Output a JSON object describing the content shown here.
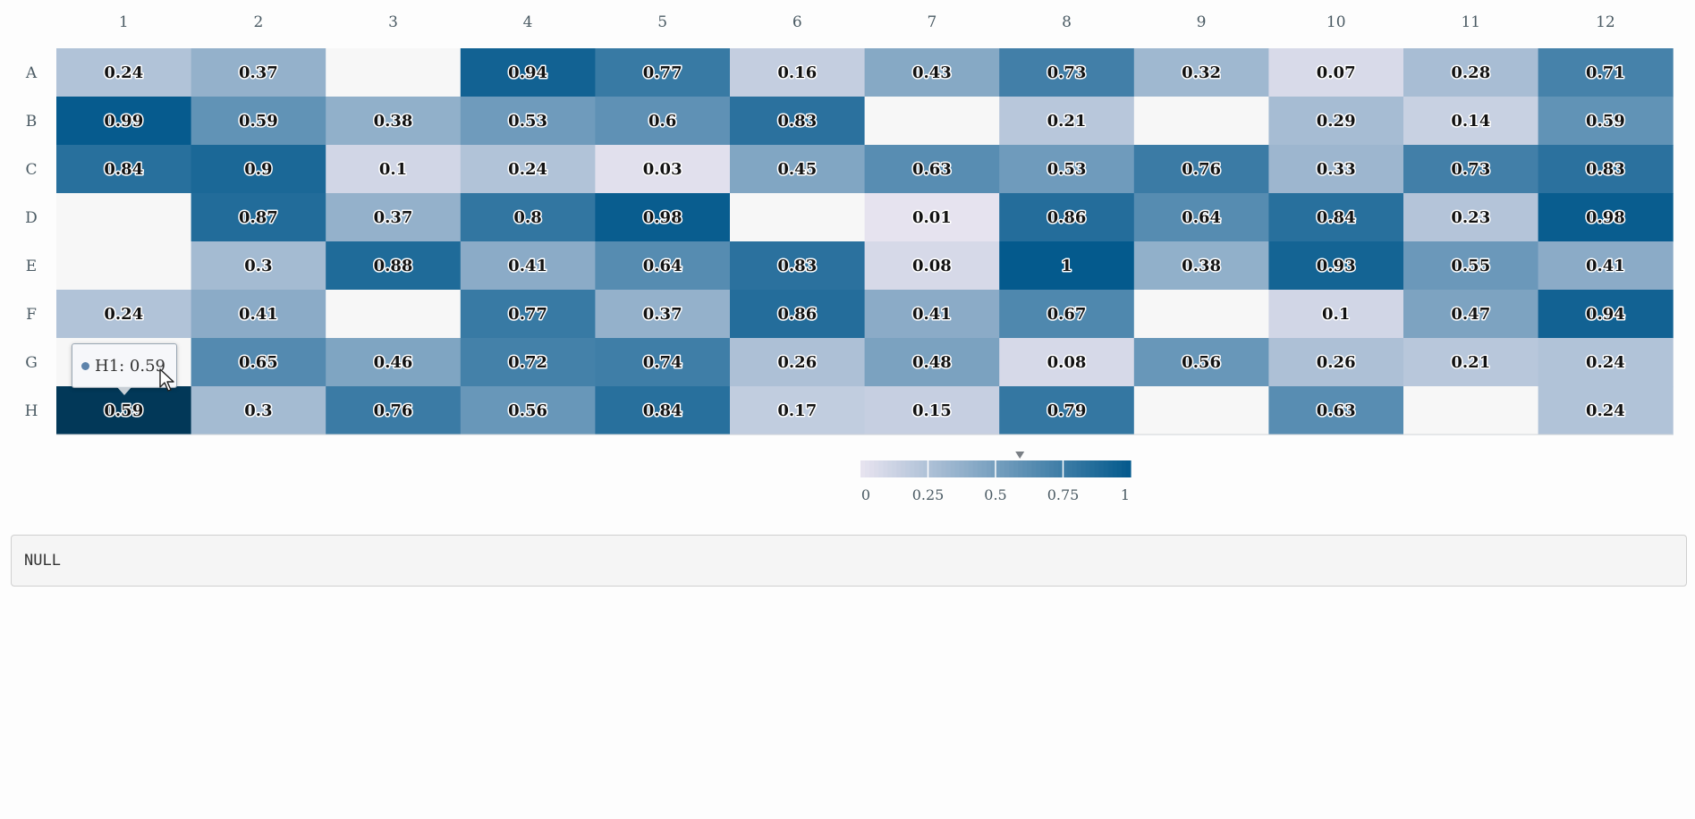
{
  "chart_data": {
    "type": "heatmap",
    "columns": [
      "1",
      "2",
      "3",
      "4",
      "5",
      "6",
      "7",
      "8",
      "9",
      "10",
      "11",
      "12"
    ],
    "rows": [
      "A",
      "B",
      "C",
      "D",
      "E",
      "F",
      "G",
      "H"
    ],
    "values": [
      [
        0.24,
        0.37,
        null,
        0.94,
        0.77,
        0.16,
        0.43,
        0.73,
        0.32,
        0.07,
        0.28,
        0.71
      ],
      [
        0.99,
        0.59,
        0.38,
        0.53,
        0.6,
        0.83,
        null,
        0.21,
        null,
        0.29,
        0.14,
        0.59
      ],
      [
        0.84,
        0.9,
        0.1,
        0.24,
        0.03,
        0.45,
        0.63,
        0.53,
        0.76,
        0.33,
        0.73,
        0.83
      ],
      [
        null,
        0.87,
        0.37,
        0.8,
        0.98,
        null,
        0.01,
        0.86,
        0.64,
        0.84,
        0.23,
        0.98
      ],
      [
        null,
        0.3,
        0.88,
        0.41,
        0.64,
        0.83,
        0.08,
        1,
        0.38,
        0.93,
        0.55,
        0.41
      ],
      [
        0.24,
        0.41,
        null,
        0.77,
        0.37,
        0.86,
        0.41,
        0.67,
        null,
        0.1,
        0.47,
        0.94
      ],
      [
        null,
        0.65,
        0.46,
        0.72,
        0.74,
        0.26,
        0.48,
        0.08,
        0.56,
        0.26,
        0.21,
        0.24
      ],
      [
        0.59,
        0.3,
        0.76,
        0.56,
        0.84,
        0.17,
        0.15,
        0.79,
        null,
        0.63,
        null,
        0.24
      ]
    ],
    "color_scale": {
      "min": 0,
      "max": 1,
      "low_color": "#e8e4f0",
      "high_color": "#045a8d",
      "empty_color": "#f7f7f7",
      "highlight_color": "#023858"
    },
    "legend": {
      "ticks": [
        "0",
        "0.25",
        "0.5",
        "0.75",
        "1"
      ],
      "placement": "bottom-center",
      "marker_value": 0.59
    }
  },
  "tooltip": {
    "text": "H1: 0.59"
  },
  "output": {
    "text": "NULL"
  }
}
